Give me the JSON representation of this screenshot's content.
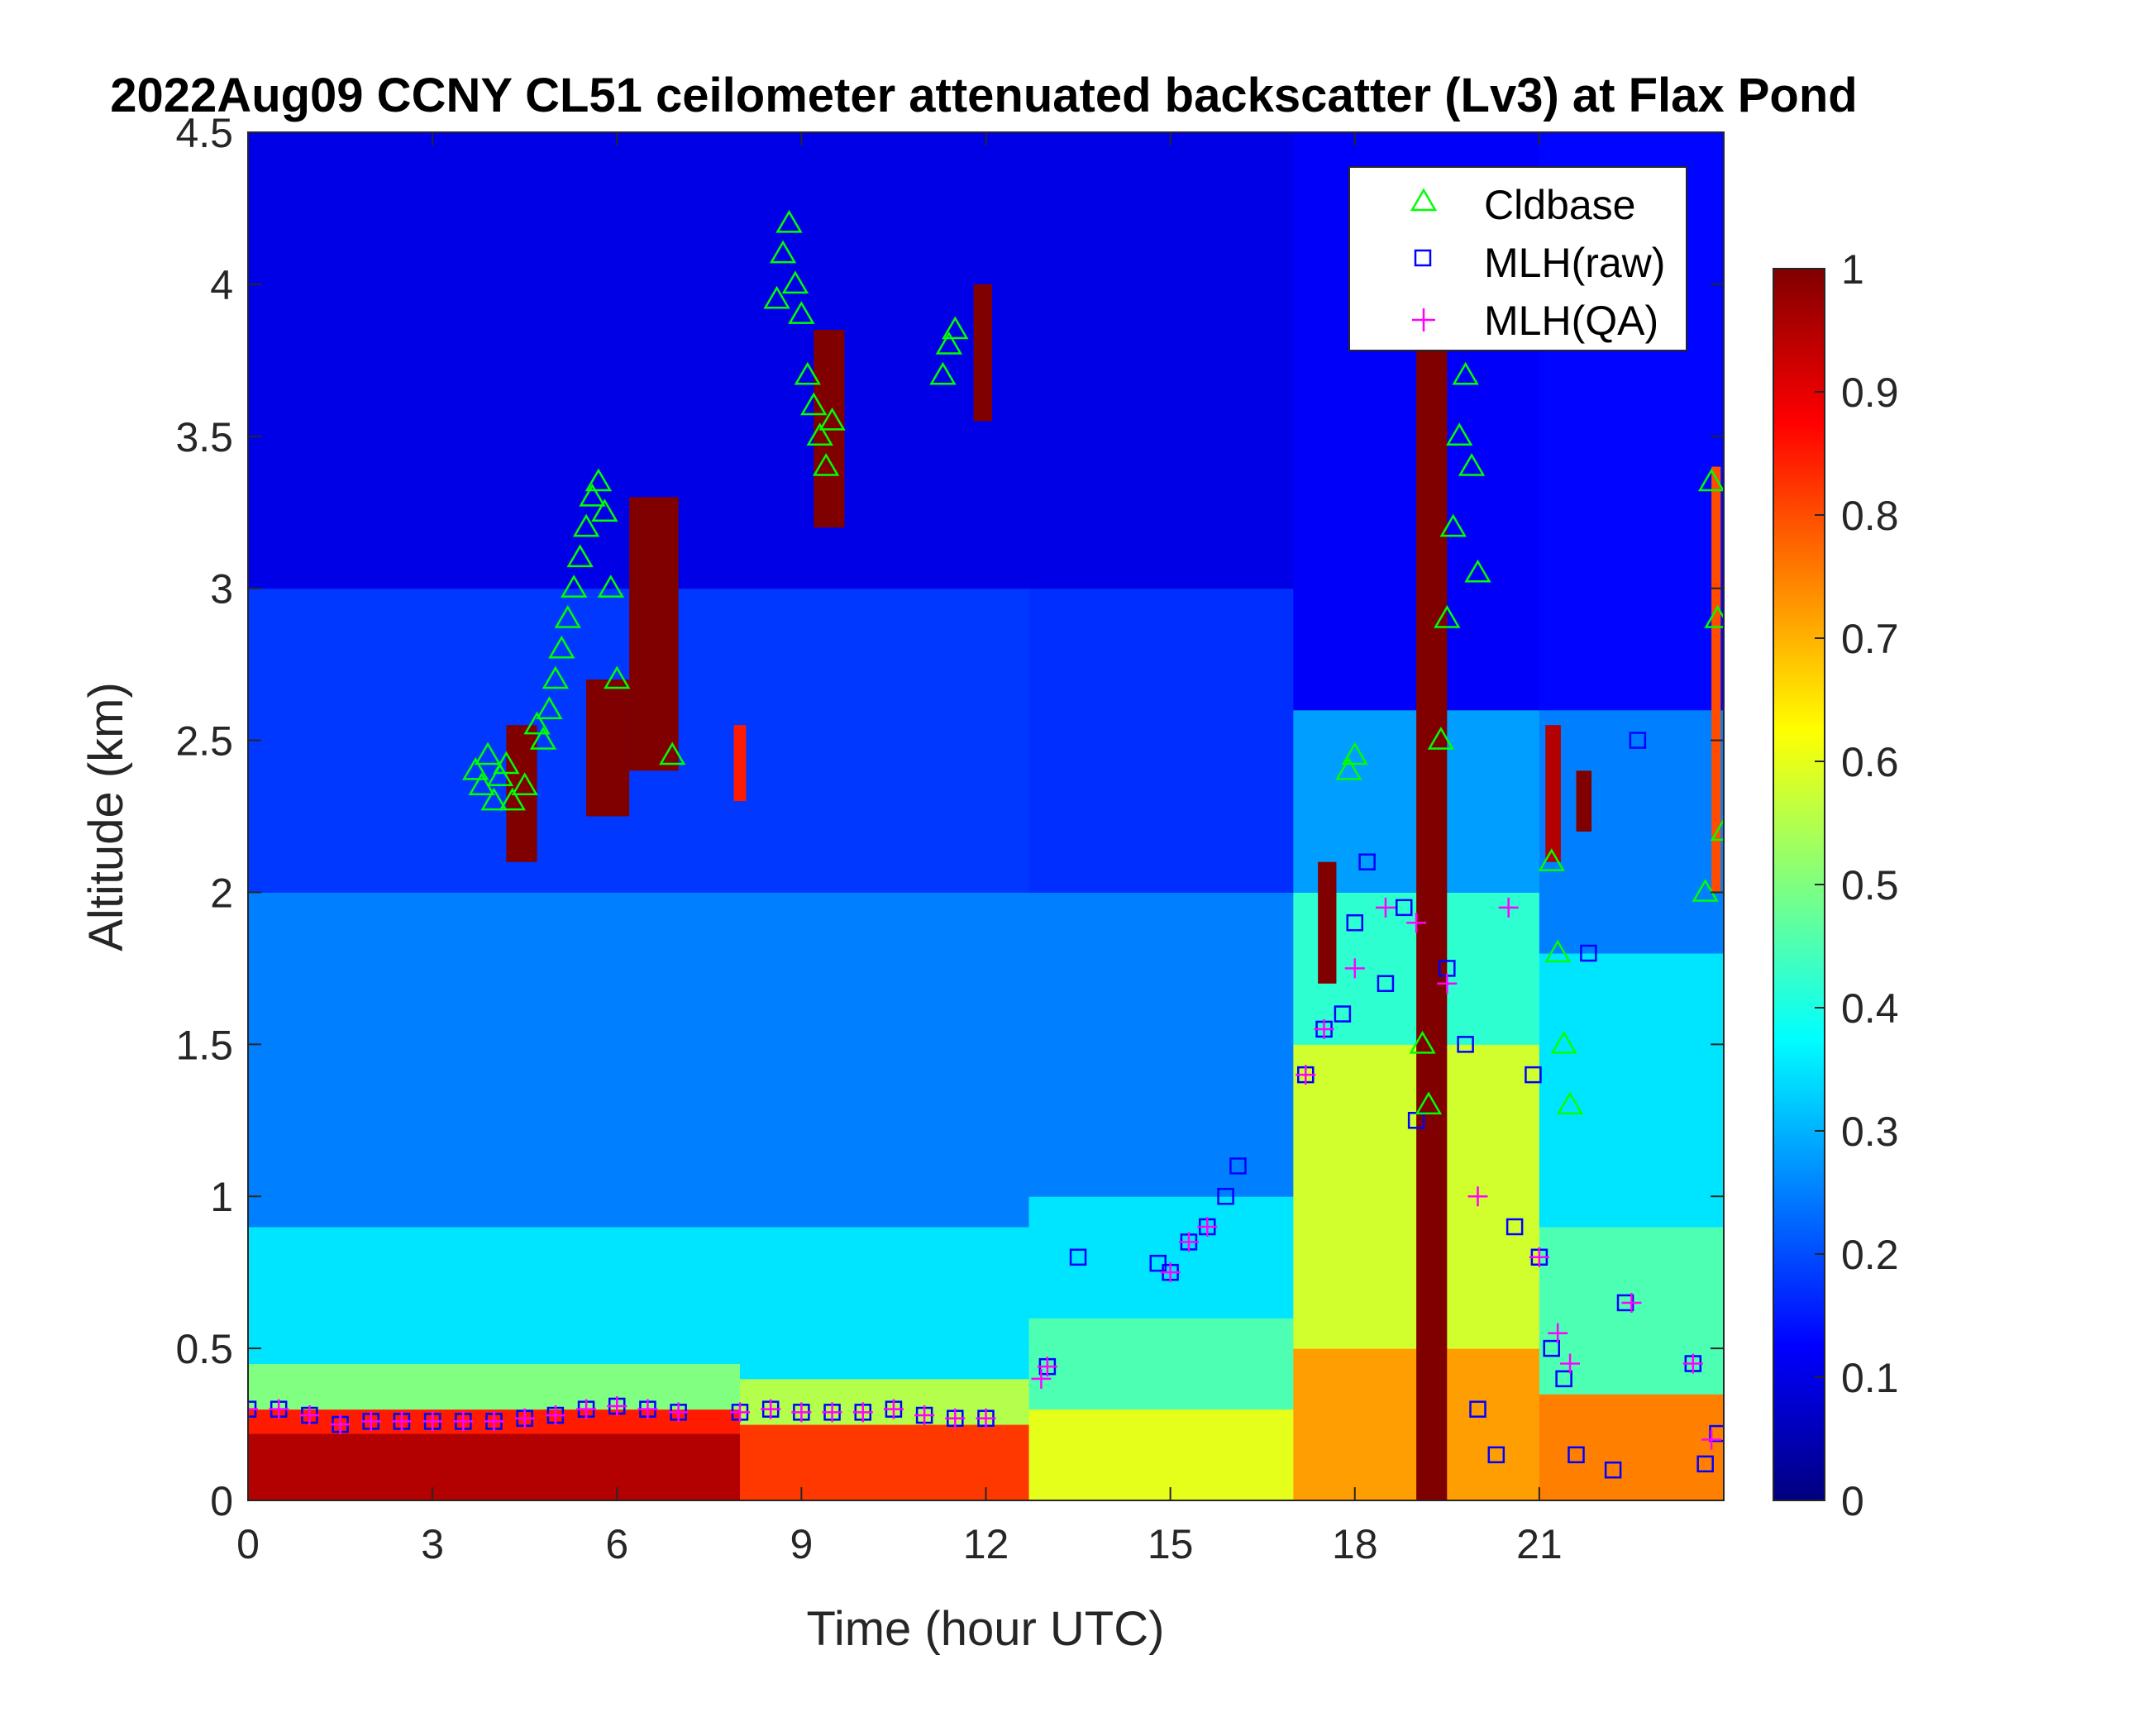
{
  "chart_data": {
    "type": "heatmap",
    "title": "2022Aug09 CCNY CL51 ceilometer attenuated backscatter (Lv3) at Flax Pond",
    "xlabel": "Time (hour UTC)",
    "ylabel": "Altitude (km)",
    "xlim": [
      0,
      24
    ],
    "ylim": [
      0,
      4.5
    ],
    "x_ticks": [
      "0",
      "3",
      "6",
      "9",
      "12",
      "15",
      "18",
      "21"
    ],
    "y_ticks": [
      "0",
      "0.5",
      "1",
      "1.5",
      "2",
      "2.5",
      "3",
      "3.5",
      "4",
      "4.5"
    ],
    "colorbar": {
      "colormap": "jet",
      "clim": [
        0,
        1
      ],
      "ticks": [
        "0",
        "0.1",
        "0.2",
        "0.3",
        "0.4",
        "0.5",
        "0.6",
        "0.7",
        "0.8",
        "0.9",
        "1"
      ]
    },
    "legend": {
      "position": "top-right",
      "entries": [
        {
          "name": "Cldbase",
          "marker": "triangle",
          "color": "#00ff00"
        },
        {
          "name": "MLH(raw)",
          "marker": "square",
          "color": "#0000ff"
        },
        {
          "name": "MLH(QA)",
          "marker": "plus",
          "color": "#ff00ff"
        }
      ]
    },
    "background_field": [
      {
        "t": [
          0,
          8
        ],
        "layers": [
          [
            0,
            0.22,
            0.95
          ],
          [
            0.22,
            0.3,
            0.85
          ],
          [
            0.3,
            0.45,
            0.5
          ],
          [
            0.45,
            0.9,
            0.35
          ],
          [
            0.9,
            2.0,
            0.25
          ],
          [
            2.0,
            3.0,
            0.18
          ],
          [
            3.0,
            4.5,
            0.1
          ]
        ]
      },
      {
        "t": [
          8,
          12.7
        ],
        "layers": [
          [
            0,
            0.25,
            0.82
          ],
          [
            0.25,
            0.4,
            0.55
          ],
          [
            0.4,
            0.9,
            0.35
          ],
          [
            0.9,
            2.0,
            0.25
          ],
          [
            2.0,
            3.0,
            0.18
          ],
          [
            3.0,
            4.5,
            0.1
          ]
        ]
      },
      {
        "t": [
          12.7,
          17
        ],
        "layers": [
          [
            0,
            0.3,
            0.6
          ],
          [
            0.3,
            0.6,
            0.45
          ],
          [
            0.6,
            1.0,
            0.35
          ],
          [
            1.0,
            2.0,
            0.25
          ],
          [
            2.0,
            3.0,
            0.17
          ],
          [
            3.0,
            4.5,
            0.1
          ]
        ]
      },
      {
        "t": [
          17,
          21
        ],
        "layers": [
          [
            0,
            0.5,
            0.72
          ],
          [
            0.5,
            1.5,
            0.58
          ],
          [
            1.5,
            2.0,
            0.42
          ],
          [
            2.0,
            2.6,
            0.28
          ],
          [
            2.6,
            4.5,
            0.12
          ]
        ]
      },
      {
        "t": [
          21,
          24
        ],
        "layers": [
          [
            0,
            0.35,
            0.75
          ],
          [
            0.35,
            0.9,
            0.45
          ],
          [
            0.9,
            1.8,
            0.35
          ],
          [
            1.8,
            2.6,
            0.25
          ],
          [
            2.6,
            4.5,
            0.13
          ]
        ]
      }
    ],
    "cloud_patches": [
      {
        "t": [
          4.2,
          4.7
        ],
        "z": [
          2.1,
          2.55
        ],
        "v": 1.0
      },
      {
        "t": [
          5.5,
          6.2
        ],
        "z": [
          2.25,
          2.7
        ],
        "v": 1.0
      },
      {
        "t": [
          6.2,
          7.0
        ],
        "z": [
          2.4,
          3.3
        ],
        "v": 1.0
      },
      {
        "t": [
          7.9,
          8.1
        ],
        "z": [
          2.3,
          2.55
        ],
        "v": 0.85
      },
      {
        "t": [
          9.2,
          9.7
        ],
        "z": [
          3.2,
          3.85
        ],
        "v": 1.0
      },
      {
        "t": [
          11.8,
          12.1
        ],
        "z": [
          3.55,
          4.0
        ],
        "v": 1.0
      },
      {
        "t": [
          17.4,
          17.7
        ],
        "z": [
          1.7,
          2.1
        ],
        "v": 1.0
      },
      {
        "t": [
          19.0,
          19.5
        ],
        "z": [
          0,
          3.8
        ],
        "v": 1.0
      },
      {
        "t": [
          21.1,
          21.35
        ],
        "z": [
          2.1,
          2.55
        ],
        "v": 0.95
      },
      {
        "t": [
          21.6,
          21.85
        ],
        "z": [
          2.2,
          2.4
        ],
        "v": 1.0
      },
      {
        "t": [
          23.8,
          23.95
        ],
        "z": [
          2.0,
          3.4
        ],
        "v": 0.8
      }
    ],
    "series": [
      {
        "name": "Cldbase",
        "x": [
          3.7,
          3.8,
          3.9,
          4.0,
          4.1,
          4.2,
          4.3,
          4.5,
          4.7,
          4.8,
          4.9,
          5.0,
          5.1,
          5.2,
          5.3,
          5.4,
          5.5,
          5.6,
          5.7,
          5.8,
          5.9,
          6.0,
          6.9,
          8.6,
          8.7,
          8.8,
          8.9,
          9.0,
          9.1,
          9.2,
          9.3,
          9.4,
          9.5,
          11.3,
          11.4,
          11.5,
          17.9,
          18.0,
          19.1,
          19.2,
          19.4,
          19.5,
          19.6,
          19.7,
          19.8,
          19.9,
          20.0,
          21.2,
          21.3,
          21.4,
          21.5,
          23.7,
          23.8,
          23.9,
          24.0
        ],
        "y": [
          2.4,
          2.35,
          2.45,
          2.3,
          2.38,
          2.42,
          2.3,
          2.35,
          2.55,
          2.5,
          2.6,
          2.7,
          2.8,
          2.9,
          3.0,
          3.1,
          3.2,
          3.3,
          3.35,
          3.25,
          3.0,
          2.7,
          2.45,
          3.95,
          4.1,
          4.2,
          4.0,
          3.9,
          3.7,
          3.6,
          3.5,
          3.4,
          3.55,
          3.7,
          3.8,
          3.85,
          2.4,
          2.45,
          1.5,
          1.3,
          2.5,
          2.9,
          3.2,
          3.5,
          3.7,
          3.4,
          3.05,
          2.1,
          1.8,
          1.5,
          1.3,
          2.0,
          3.35,
          2.9,
          2.2
        ]
      },
      {
        "name": "MLH(raw)",
        "x": [
          0,
          0.5,
          1.0,
          1.5,
          2.0,
          2.5,
          3.0,
          3.5,
          4.0,
          4.5,
          5.0,
          5.5,
          6.0,
          6.5,
          7.0,
          8.0,
          8.5,
          9.0,
          9.5,
          10.0,
          10.5,
          11.0,
          11.5,
          12.0,
          13.0,
          13.5,
          14.8,
          15.0,
          15.3,
          15.6,
          15.9,
          16.1,
          17.2,
          17.5,
          17.8,
          18.0,
          18.2,
          18.5,
          18.8,
          19.0,
          19.5,
          19.8,
          20.0,
          20.3,
          20.6,
          20.9,
          21.0,
          21.2,
          21.4,
          21.6,
          21.8,
          22.2,
          22.4,
          22.6,
          23.5,
          23.7,
          23.9
        ],
        "y": [
          0.3,
          0.3,
          0.28,
          0.25,
          0.26,
          0.26,
          0.26,
          0.26,
          0.26,
          0.27,
          0.28,
          0.3,
          0.31,
          0.3,
          0.29,
          0.29,
          0.3,
          0.29,
          0.29,
          0.29,
          0.3,
          0.28,
          0.27,
          0.27,
          0.44,
          0.8,
          0.78,
          0.75,
          0.85,
          0.9,
          1.0,
          1.1,
          1.4,
          1.55,
          1.6,
          1.9,
          2.1,
          1.7,
          1.95,
          1.25,
          1.75,
          1.5,
          0.3,
          0.15,
          0.9,
          1.4,
          0.8,
          0.5,
          0.4,
          0.15,
          1.8,
          0.1,
          0.65,
          2.5,
          0.45,
          0.12,
          0.22
        ]
      },
      {
        "name": "MLH(QA)",
        "x": [
          0,
          0.5,
          1.0,
          1.5,
          2.0,
          2.5,
          3.0,
          3.5,
          4.0,
          4.5,
          5.0,
          5.5,
          6.0,
          6.5,
          7.0,
          8.0,
          8.5,
          9.0,
          9.5,
          10.0,
          10.5,
          11.0,
          11.5,
          12.0,
          12.9,
          13.0,
          15.0,
          15.3,
          15.6,
          17.2,
          17.5,
          18.0,
          18.5,
          19.0,
          19.5,
          20.0,
          20.5,
          21.0,
          21.3,
          21.5,
          22.5,
          23.5,
          23.8
        ],
        "y": [
          0.3,
          0.3,
          0.28,
          0.25,
          0.26,
          0.26,
          0.26,
          0.26,
          0.26,
          0.27,
          0.28,
          0.3,
          0.31,
          0.3,
          0.29,
          0.29,
          0.3,
          0.29,
          0.29,
          0.29,
          0.3,
          0.28,
          0.27,
          0.27,
          0.4,
          0.44,
          0.75,
          0.85,
          0.9,
          1.4,
          1.55,
          1.75,
          1.95,
          1.9,
          1.7,
          1.0,
          1.95,
          0.8,
          0.55,
          0.45,
          0.65,
          0.45,
          0.2
        ]
      }
    ]
  }
}
